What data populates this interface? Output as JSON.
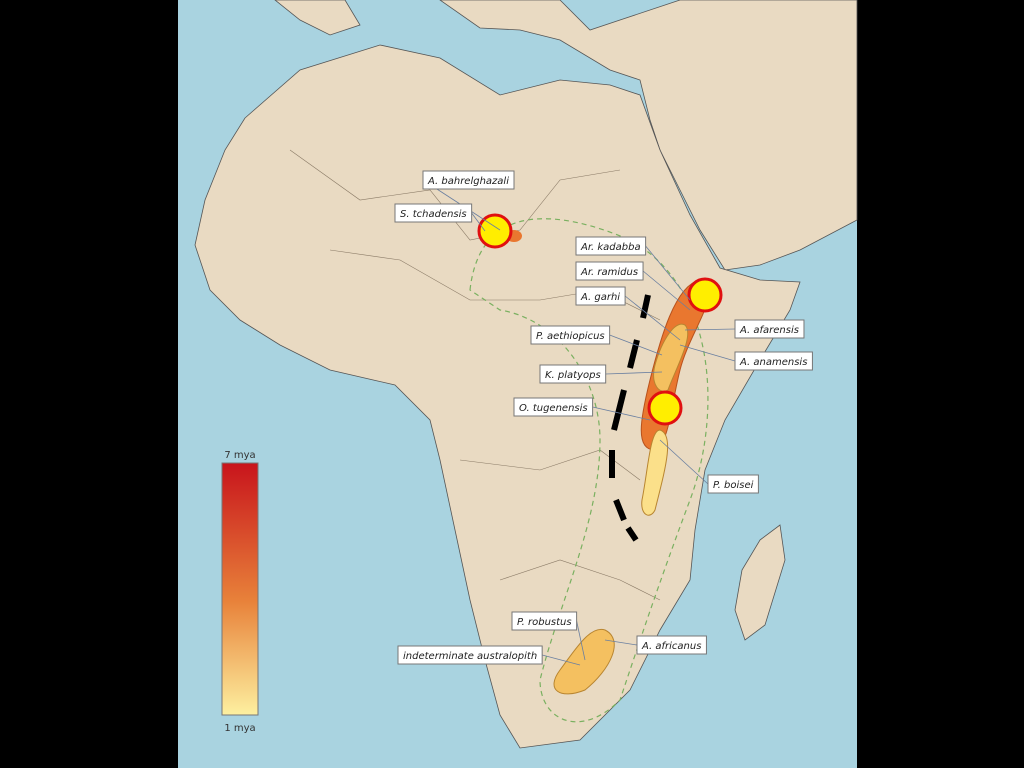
{
  "legend": {
    "top": "7 mya",
    "bottom": "1 mya"
  },
  "labels": [
    "A. bahrelghazali",
    "S. tchadensis",
    "Ar. kadabba",
    "Ar. ramidus",
    "A. garhi",
    "P. aethiopicus",
    "A. afarensis",
    "A. anamensis",
    "K. platyops",
    "O. tugenensis",
    "P. boisei",
    "P. robustus",
    "indeterminate australopith",
    "A. africanus"
  ]
}
